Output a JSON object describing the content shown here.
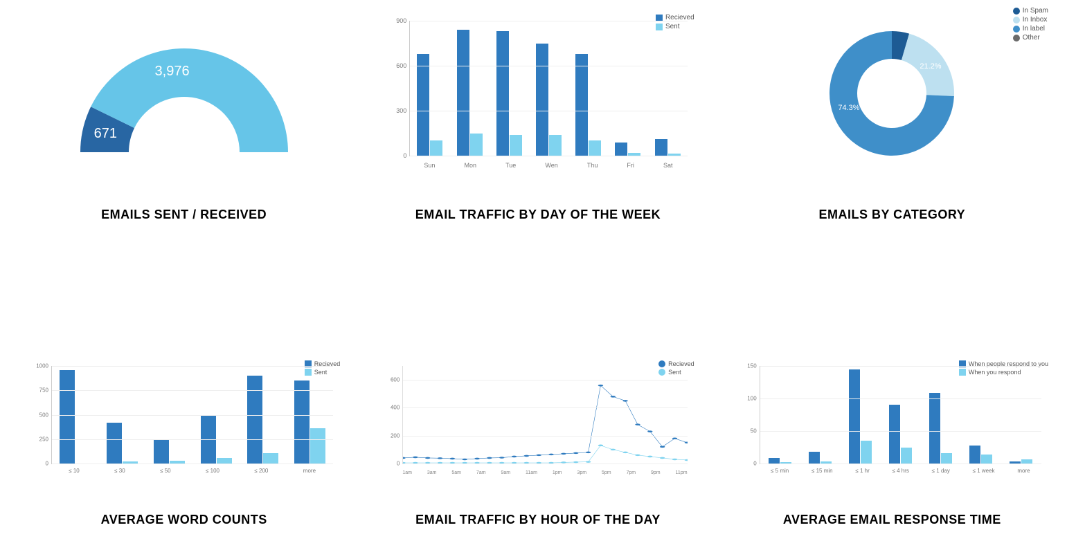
{
  "colors": {
    "primary": "#2f7bbf",
    "secondary": "#7fd3ef",
    "gauge_dark": "#2866a3",
    "gauge_light": "#66c5e8",
    "donut_dark": "#1d5b94",
    "donut_main": "#3f8fc9",
    "donut_light": "#bde0f0",
    "donut_other": "#6b6b6b",
    "grid": "#eeeeee",
    "axis": "#cccccc",
    "text": "#000000",
    "tick": "#777777"
  },
  "gauge": {
    "title": "EMAILS SENT / RECEIVED",
    "sent_value": 671,
    "sent_label": "671",
    "received_value": 3976,
    "received_label": "3,976",
    "total": 4647
  },
  "traffic_week": {
    "title": "EMAIL TRAFFIC BY DAY OF THE WEEK",
    "type": "bar",
    "legend": [
      {
        "label": "Recieved",
        "color": "#2f7bbf"
      },
      {
        "label": "Sent",
        "color": "#7fd3ef"
      }
    ],
    "categories": [
      "Sun",
      "Mon",
      "Tue",
      "Wen",
      "Thu",
      "Fri",
      "Sat"
    ],
    "received": [
      680,
      840,
      830,
      750,
      680,
      90,
      110
    ],
    "sent": [
      100,
      150,
      140,
      140,
      100,
      20,
      15
    ],
    "ymax": 900,
    "ytick_step": 300
  },
  "categories": {
    "title": "EMAILS BY CATEGORY",
    "type": "donut",
    "legend": [
      {
        "label": "In Spam",
        "color": "#1d5b94"
      },
      {
        "label": "In Inbox",
        "color": "#bde0f0"
      },
      {
        "label": "In label",
        "color": "#3f8fc9"
      },
      {
        "label": "Other",
        "color": "#6b6b6b"
      }
    ],
    "slices": [
      {
        "name": "in-spam",
        "pct": 4.5,
        "color": "#1d5b94"
      },
      {
        "name": "in-inbox",
        "pct": 21.2,
        "color": "#bde0f0",
        "label": "21.2%"
      },
      {
        "name": "in-label",
        "pct": 74.3,
        "color": "#3f8fc9",
        "label": "74.3%"
      }
    ]
  },
  "word_counts": {
    "title": "AVERAGE WORD COUNTS",
    "type": "bar",
    "legend": [
      {
        "label": "Recieved",
        "color": "#2f7bbf"
      },
      {
        "label": "Sent",
        "color": "#7fd3ef"
      }
    ],
    "categories": [
      "≤ 10",
      "≤ 30",
      "≤ 50",
      "≤ 100",
      "≤ 200",
      "more"
    ],
    "received": [
      960,
      420,
      240,
      490,
      900,
      850
    ],
    "sent": [
      0,
      20,
      30,
      60,
      110,
      360
    ],
    "ymax": 1000,
    "ytick_step": 250
  },
  "traffic_hour": {
    "title": "EMAIL TRAFFIC BY HOUR OF THE DAY",
    "type": "line",
    "legend": [
      {
        "label": "Recieved",
        "color": "#2f7bbf"
      },
      {
        "label": "Sent",
        "color": "#7fd3ef"
      }
    ],
    "categories": [
      "1am",
      "3am",
      "5am",
      "7am",
      "9am",
      "11am",
      "1pm",
      "3pm",
      "5pm",
      "7pm",
      "9pm",
      "11pm"
    ],
    "hours": [
      0,
      1,
      2,
      3,
      4,
      5,
      6,
      7,
      8,
      9,
      10,
      11,
      12,
      13,
      14,
      15,
      16,
      17,
      18,
      19,
      20,
      21,
      22,
      23
    ],
    "received": [
      40,
      45,
      40,
      38,
      35,
      30,
      35,
      40,
      42,
      50,
      55,
      60,
      65,
      70,
      75,
      80,
      560,
      480,
      450,
      280,
      230,
      120,
      180,
      150
    ],
    "sent": [
      5,
      5,
      5,
      5,
      5,
      5,
      5,
      5,
      5,
      5,
      5,
      5,
      5,
      8,
      10,
      12,
      130,
      100,
      80,
      60,
      50,
      40,
      30,
      25
    ],
    "ymax": 700,
    "ytick_step": 200
  },
  "response_time": {
    "title": "AVERAGE EMAIL RESPONSE TIME",
    "type": "bar",
    "legend": [
      {
        "label": "When people respond to you",
        "color": "#2f7bbf"
      },
      {
        "label": "When you respond",
        "color": "#7fd3ef"
      }
    ],
    "categories": [
      "≤ 5 min",
      "≤ 15 min",
      "≤ 1 hr",
      "≤ 4 hrs",
      "≤ 1 day",
      "≤ 1 week",
      "more"
    ],
    "series_a": [
      8,
      18,
      145,
      90,
      108,
      28,
      3
    ],
    "series_b": [
      2,
      3,
      35,
      25,
      16,
      14,
      6
    ],
    "ymax": 150,
    "ytick_step": 50
  }
}
